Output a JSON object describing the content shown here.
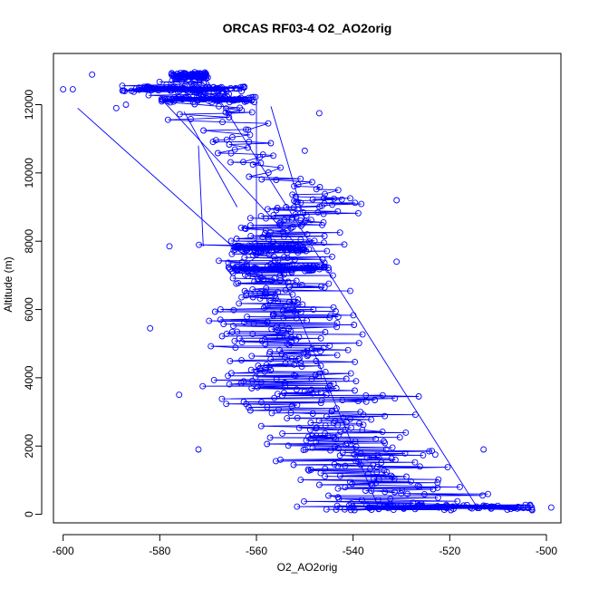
{
  "chart_data": {
    "type": "scatter",
    "title": "ORCAS RF03-4 O2_AO2orig",
    "xlabel": "O2_AO2orig",
    "ylabel": "Altitude (m)",
    "xlim": [
      -602,
      -497
    ],
    "ylim": [
      -250,
      13500
    ],
    "xticks": [
      -600,
      -580,
      -560,
      -540,
      -520,
      -500
    ],
    "yticks": [
      0,
      2000,
      4000,
      6000,
      8000,
      10000,
      12000
    ],
    "grid": false,
    "point_style": "open-circle",
    "connected": true,
    "colors": {
      "series": "#0000ff",
      "axis": "#000000"
    },
    "profile": [
      {
        "alt": 12850,
        "xlo": -577,
        "xhi": -567
      },
      {
        "alt": 12500,
        "xlo": -592,
        "xhi": -562
      },
      {
        "alt": 12200,
        "xlo": -585,
        "xhi": -560
      },
      {
        "alt": 11600,
        "xlo": -583,
        "xhi": -552
      },
      {
        "alt": 11000,
        "xlo": -577,
        "xhi": -553
      },
      {
        "alt": 10200,
        "xlo": -572,
        "xhi": -551
      },
      {
        "alt": 9200,
        "xlo": -563,
        "xhi": -533
      },
      {
        "alt": 8500,
        "xlo": -565,
        "xhi": -543
      },
      {
        "alt": 7800,
        "xlo": -577,
        "xhi": -537
      },
      {
        "alt": 7200,
        "xlo": -575,
        "xhi": -537
      },
      {
        "alt": 6500,
        "xlo": -572,
        "xhi": -537
      },
      {
        "alt": 5800,
        "xlo": -576,
        "xhi": -535
      },
      {
        "alt": 5000,
        "xlo": -574,
        "xhi": -532
      },
      {
        "alt": 4200,
        "xlo": -571,
        "xhi": -528
      },
      {
        "alt": 3500,
        "xlo": -573,
        "xhi": -524
      },
      {
        "alt": 2700,
        "xlo": -569,
        "xhi": -520
      },
      {
        "alt": 2000,
        "xlo": -566,
        "xhi": -515
      },
      {
        "alt": 1300,
        "xlo": -561,
        "xhi": -510
      },
      {
        "alt": 700,
        "xlo": -555,
        "xhi": -505
      },
      {
        "alt": 200,
        "xlo": -558,
        "xhi": -500
      }
    ],
    "dense_bands": [
      {
        "alt": 12850,
        "xlo": -578,
        "xhi": -570
      },
      {
        "alt": 12450,
        "xlo": -588,
        "xhi": -562
      },
      {
        "alt": 12150,
        "xlo": -580,
        "xhi": -560
      },
      {
        "alt": 7800,
        "xlo": -565,
        "xhi": -550
      },
      {
        "alt": 7200,
        "xlo": -566,
        "xhi": -545
      },
      {
        "alt": 200,
        "xlo": -548,
        "xhi": -502
      }
    ],
    "isolated_points": [
      {
        "x": -600,
        "y": 12450
      },
      {
        "x": -598,
        "y": 12450
      },
      {
        "x": -594,
        "y": 12880
      },
      {
        "x": -589,
        "y": 11900
      },
      {
        "x": -587,
        "y": 12000
      },
      {
        "x": -547,
        "y": 11750
      },
      {
        "x": -550,
        "y": 10650
      },
      {
        "x": -531,
        "y": 9200
      },
      {
        "x": -578,
        "y": 7850
      },
      {
        "x": -531,
        "y": 7400
      },
      {
        "x": -582,
        "y": 5450
      },
      {
        "x": -576,
        "y": 3500
      },
      {
        "x": -572,
        "y": 1900
      },
      {
        "x": -523,
        "y": 1750
      },
      {
        "x": -513,
        "y": 1900
      },
      {
        "x": -499,
        "y": 200
      }
    ],
    "long_jumps": [
      {
        "x1": -597,
        "y1": 11900,
        "x2": -565,
        "y2": 7850
      },
      {
        "x1": -572,
        "y1": 10800,
        "x2": -571,
        "y2": 7850
      },
      {
        "x1": -560,
        "y1": 12100,
        "x2": -560,
        "y2": 7850
      },
      {
        "x1": -575,
        "y1": 11800,
        "x2": -564,
        "y2": 9000
      },
      {
        "x1": -557,
        "y1": 11950,
        "x2": -550,
        "y2": 8600
      }
    ]
  }
}
